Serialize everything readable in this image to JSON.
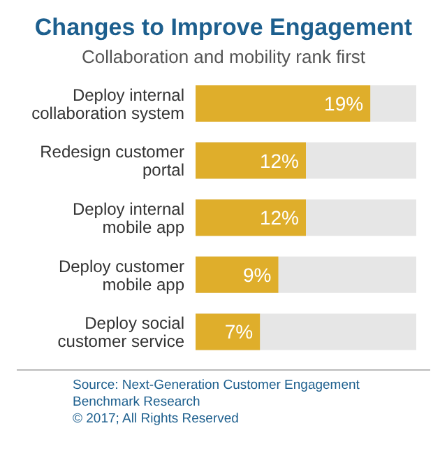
{
  "chart_data": {
    "type": "bar",
    "orientation": "horizontal",
    "title": "Changes to Improve Engagement",
    "subtitle": "Collaboration and mobility rank first",
    "categories": [
      "Deploy internal collaboration system",
      "Redesign customer portal",
      "Deploy internal mobile app",
      "Deploy customer mobile app",
      "Deploy social customer service"
    ],
    "values": [
      19,
      12,
      12,
      9,
      7
    ],
    "value_labels": [
      "19%",
      "12%",
      "12%",
      "9%",
      "7%"
    ],
    "color": "#dfae2b",
    "xlim": [
      0,
      24
    ],
    "tick_labels": "y",
    "annotations": [
      "Source: Next-Generation Customer Engagement Benchmark Research",
      "© 2017; All Rights Reserved"
    ]
  }
}
